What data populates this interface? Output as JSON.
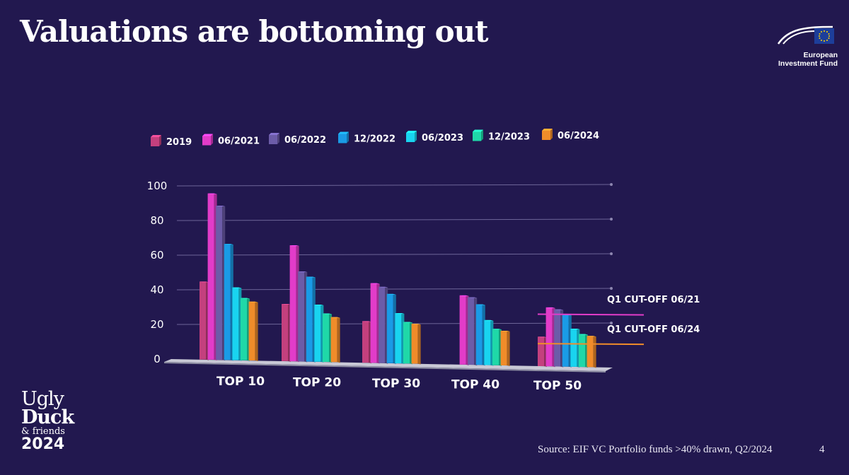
{
  "slide": {
    "title": "Valuations are bottoming out",
    "source": "Source: EIF VC Portfolio funds >40% drawn, Q2/2024",
    "page_number": "4"
  },
  "logo_eif": {
    "line1": "European",
    "line2": "Investment Fund"
  },
  "logo_event": {
    "line1": "Ugly",
    "line2": "Duck",
    "line3": "& friends",
    "line4": "2024"
  },
  "chart_data": {
    "type": "bar",
    "title": "",
    "xlabel": "",
    "ylabel": "",
    "ylim": [
      0,
      100
    ],
    "yticks": [
      "0",
      "20",
      "40",
      "60",
      "80",
      "100"
    ],
    "categories": [
      "TOP 10",
      "TOP 20",
      "TOP 30",
      "TOP 40",
      "TOP 50"
    ],
    "series": [
      {
        "name": "2019",
        "color": "#c4407e",
        "values": [
          45,
          33,
          24,
          null,
          17
        ]
      },
      {
        "name": "06/2021",
        "color": "#e23cc9",
        "values": [
          96,
          67,
          46,
          40,
          34
        ]
      },
      {
        "name": "06/2022",
        "color": "#6c5ca8",
        "values": [
          89,
          52,
          44,
          39,
          33
        ]
      },
      {
        "name": "12/2022",
        "color": "#1a9be6",
        "values": [
          67,
          49,
          40,
          35,
          30
        ]
      },
      {
        "name": "06/2023",
        "color": "#19d4f0",
        "values": [
          42,
          33,
          29,
          26,
          22
        ]
      },
      {
        "name": "12/2023",
        "color": "#1fd8a8",
        "values": [
          36,
          28,
          24,
          21,
          19
        ]
      },
      {
        "name": "06/2024",
        "color": "#f08c2a",
        "values": [
          34,
          26,
          23,
          20,
          18
        ]
      }
    ],
    "legend": "top",
    "annotations": [
      {
        "label": "Q1 CUT-OFF 06/21",
        "value": 30,
        "color": "#e23cc9"
      },
      {
        "label": "Q1 CUT-OFF 06/24",
        "value": 13,
        "color": "#f08c2a"
      }
    ],
    "grid": true
  }
}
